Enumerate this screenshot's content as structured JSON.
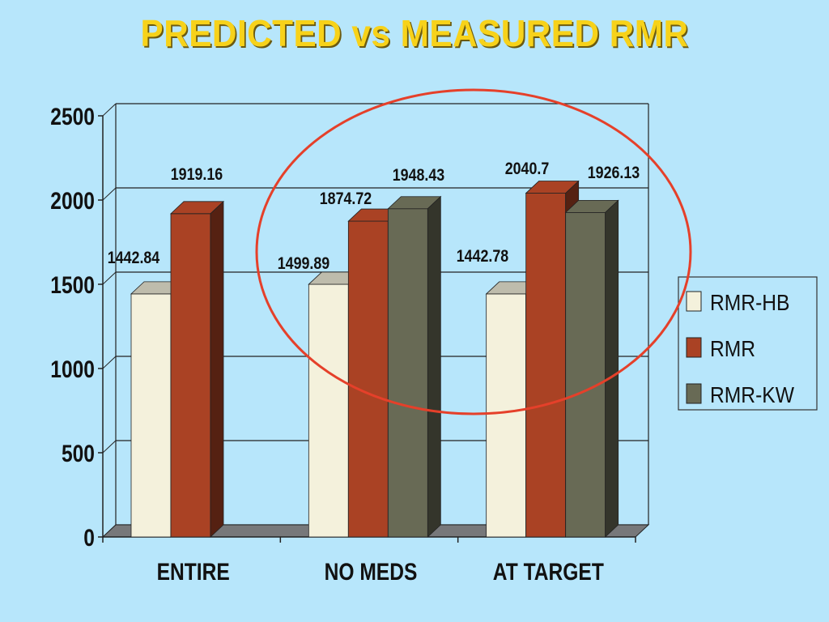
{
  "title": "PREDICTED vs MEASURED RMR",
  "colors": {
    "background": "#b7e6fb",
    "title": "#f7d21a",
    "circle": "#e5402a"
  },
  "chart_data": {
    "type": "bar",
    "categories": [
      "ENTIRE",
      "NO MEDS",
      "AT TARGET"
    ],
    "series": [
      {
        "name": "RMR-HB",
        "color": "#f4f1dc",
        "values": [
          1442.84,
          1499.89,
          1442.78
        ],
        "labels": [
          "1442.84",
          "1499.89",
          "1442.78"
        ]
      },
      {
        "name": "RMR",
        "color": "#aa4224",
        "values": [
          1919.16,
          1874.72,
          2040.7
        ],
        "labels": [
          "1919.16",
          "1874.72",
          "2040.7"
        ]
      },
      {
        "name": "RMR-KW",
        "color": "#686a55",
        "values": [
          null,
          1948.43,
          1926.13
        ],
        "labels": [
          null,
          "1948.43",
          "1926.13"
        ]
      }
    ],
    "ylim": [
      0,
      2500
    ],
    "yticks": [
      0,
      500,
      1000,
      1500,
      2000,
      2500
    ],
    "grid": true,
    "legend_position": "right",
    "style": "3d-clustered-column",
    "annotation": "ellipse highlighting NO MEDS and AT TARGET groups"
  }
}
